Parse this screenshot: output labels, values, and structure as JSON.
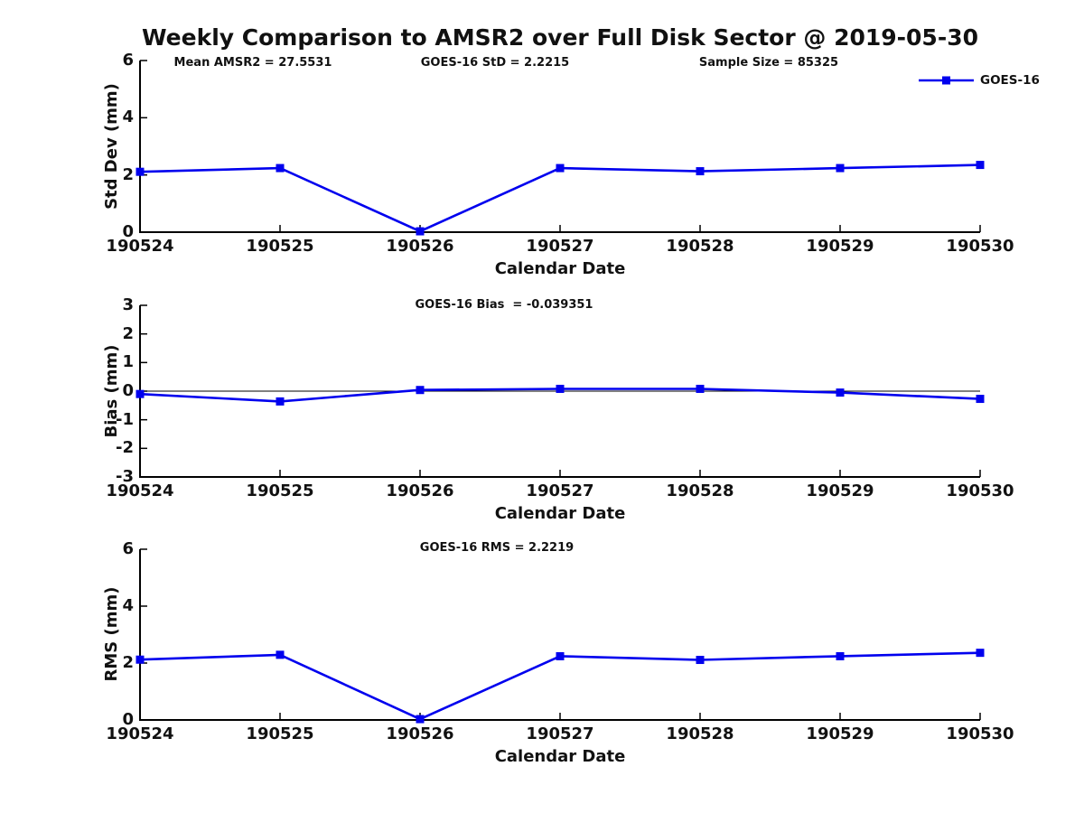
{
  "title": "Weekly Comparison to AMSR2 over Full Disk Sector @ 2019-05-30",
  "legend": {
    "label": "GOES-16",
    "position": "top-right"
  },
  "colors": {
    "line": "#0000ee",
    "axis": "#000000",
    "zero_line": "#000000",
    "text": "#111111",
    "background": "#ffffff"
  },
  "chart_data": [
    {
      "type": "line",
      "categories": [
        "190524",
        "190525",
        "190526",
        "190527",
        "190528",
        "190529",
        "190530"
      ],
      "series": [
        {
          "name": "GOES-16",
          "values": [
            2.11,
            2.24,
            0.03,
            2.24,
            2.13,
            2.24,
            2.35
          ]
        }
      ],
      "xlabel": "Calendar Date",
      "ylabel": "Std Dev (mm)",
      "ylim": [
        0,
        6
      ],
      "yticks": [
        0,
        2,
        4,
        6
      ],
      "grid": false,
      "marker": "square",
      "annotations": [
        "Mean AMSR2 = 27.5531",
        "GOES-16 StD = 2.2215",
        "Sample Size = 85325"
      ]
    },
    {
      "type": "line",
      "categories": [
        "190524",
        "190525",
        "190526",
        "190527",
        "190528",
        "190529",
        "190530"
      ],
      "series": [
        {
          "name": "GOES-16",
          "values": [
            -0.1,
            -0.36,
            0.04,
            0.08,
            0.08,
            -0.05,
            -0.27
          ]
        }
      ],
      "xlabel": "Calendar Date",
      "ylabel": "Bias (mm)",
      "ylim": [
        -3,
        3
      ],
      "yticks": [
        -3,
        -2,
        -1,
        0,
        1,
        2,
        3
      ],
      "grid": false,
      "zero_line": true,
      "marker": "square",
      "annotations": [
        "GOES-16 Bias  = -0.039351"
      ]
    },
    {
      "type": "line",
      "categories": [
        "190524",
        "190525",
        "190526",
        "190527",
        "190528",
        "190529",
        "190530"
      ],
      "series": [
        {
          "name": "GOES-16",
          "values": [
            2.12,
            2.29,
            0.03,
            2.24,
            2.11,
            2.24,
            2.36
          ]
        }
      ],
      "xlabel": "Calendar Date",
      "ylabel": "RMS (mm)",
      "ylim": [
        0,
        6
      ],
      "yticks": [
        0,
        2,
        4,
        6
      ],
      "grid": false,
      "marker": "square",
      "annotations": [
        "GOES-16 RMS = 2.2219"
      ]
    }
  ]
}
